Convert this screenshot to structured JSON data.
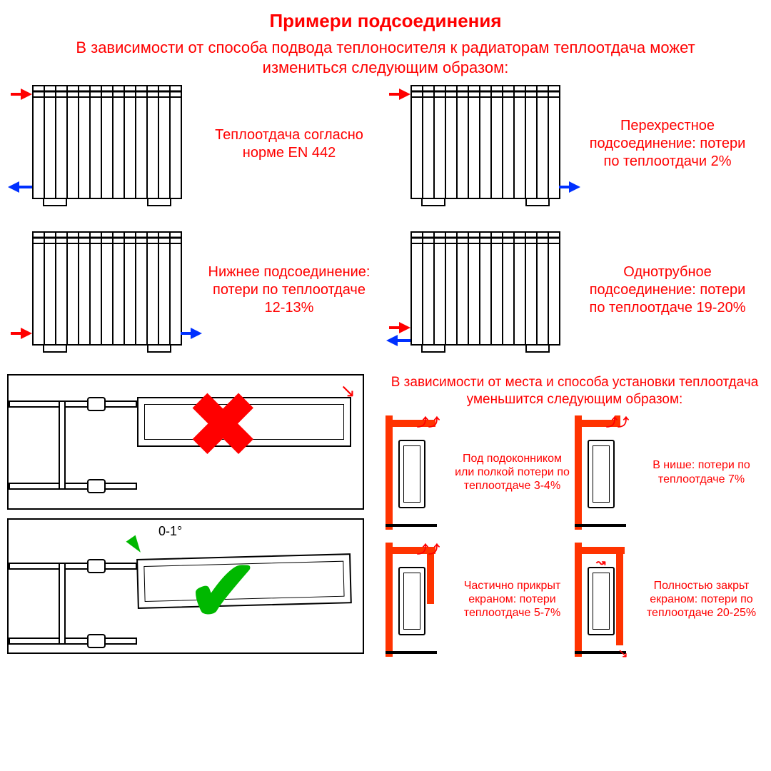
{
  "colors": {
    "accent": "#ff0000",
    "hot_arrow": "#ff0000",
    "cold_arrow": "#0030ff",
    "wrong_x": "#ff0000",
    "correct_check": "#00b800",
    "wall": "#ff3300",
    "black": "#000000",
    "bg": "#ffffff"
  },
  "title": "Примери подсоединения",
  "subtitle": "В зависимости от способа подвода теплоносителя к радиаторам теплоотдача может измениться следующим образом:",
  "connections": [
    {
      "id": "en442",
      "caption": "Теплоотдача согласно норме EN 442",
      "inlet": {
        "side": "left",
        "pos": "top",
        "dir": "in",
        "color": "hot"
      },
      "outlet": {
        "side": "left",
        "pos": "bottom",
        "dir": "out",
        "color": "cold"
      }
    },
    {
      "id": "cross",
      "caption": "Перехрестное подсоединение: потери по теплоотдачи 2%",
      "inlet": {
        "side": "left",
        "pos": "top",
        "dir": "in",
        "color": "hot"
      },
      "outlet": {
        "side": "right",
        "pos": "bottom",
        "dir": "out",
        "color": "cold"
      }
    },
    {
      "id": "bottom",
      "caption": "Нижнее подсоединение: потери по теплоотдаче 12-13%",
      "inlet": {
        "side": "left",
        "pos": "bottom",
        "dir": "in",
        "color": "hot"
      },
      "outlet": {
        "side": "right",
        "pos": "bottom",
        "dir": "out",
        "color": "cold"
      }
    },
    {
      "id": "single-pipe",
      "caption": "Однотрубное подсоединение: потери по теплоотдаче 19-20%",
      "inlet": {
        "side": "left",
        "pos": "bottom_high",
        "dir": "in",
        "color": "hot"
      },
      "outlet": {
        "side": "left",
        "pos": "bottom_low",
        "dir": "out",
        "color": "cold"
      }
    }
  ],
  "slope": {
    "wrong": {
      "mark": "x",
      "mark_color": "wrong_x"
    },
    "correct": {
      "mark": "check",
      "mark_color": "correct_check",
      "angle_label": "0-1°"
    }
  },
  "install_note": "В зависимости от места и способа установки теплоотдача уменьшится следующим образом:",
  "installations": [
    {
      "id": "sill",
      "caption": "Под подоконником или полкой потери по теплоотдаче 3-4%",
      "sill": true,
      "screen": "none"
    },
    {
      "id": "niche",
      "caption": "В нише: потери по теплоотдаче 7%",
      "sill": true,
      "screen": "none",
      "niche": true
    },
    {
      "id": "partial",
      "caption": "Частично прикрыт екраном: потери теплоотдаче 5-7%",
      "sill": true,
      "screen": "partial"
    },
    {
      "id": "full",
      "caption": "Полностью закрьт екраном: потери по теплоотдаче 20-25%",
      "sill": true,
      "screen": "full"
    }
  ],
  "radiator": {
    "sections": 13
  }
}
